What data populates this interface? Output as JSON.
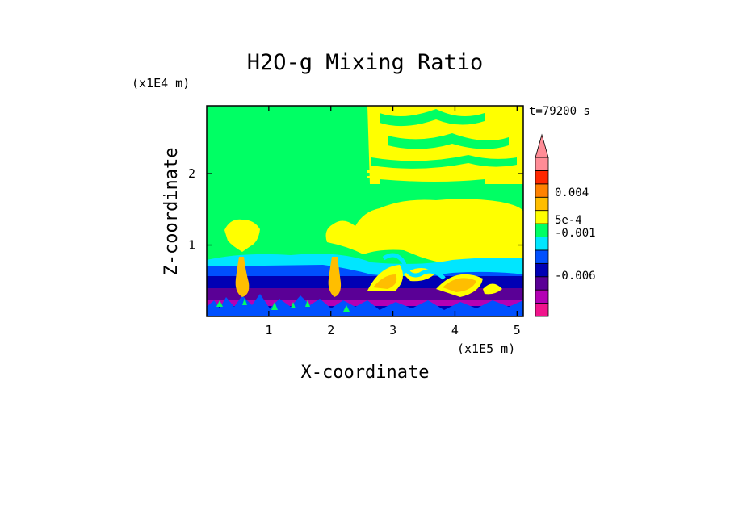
{
  "chart_data": {
    "type": "heatmap",
    "title": "H2O-g Mixing Ratio",
    "time_label": "t=79200 s",
    "xlabel": "X-coordinate",
    "ylabel": "Z-coordinate",
    "x_unit": "(x1E5 m)",
    "y_unit": "(x1E4 m)",
    "x_ticks": [
      "1",
      "2",
      "3",
      "4",
      "5"
    ],
    "y_ticks": [
      "1",
      "2"
    ],
    "xlim": [
      0,
      5.1
    ],
    "ylim": [
      0,
      2.95
    ],
    "colorbar": {
      "labels": [
        "0.004",
        "5e-4",
        "-0.001",
        "-0.006"
      ],
      "colors": [
        "#f0148c",
        "#b400b4",
        "#5a0096",
        "#0000b4",
        "#0050ff",
        "#00e6ff",
        "#00ff64",
        "#ffff00",
        "#ffbe00",
        "#ff8200",
        "#ff2800",
        "#ff8c96"
      ],
      "extend": "max"
    }
  },
  "colors": {
    "background_field": "#00ff64",
    "frame": "#000000"
  }
}
